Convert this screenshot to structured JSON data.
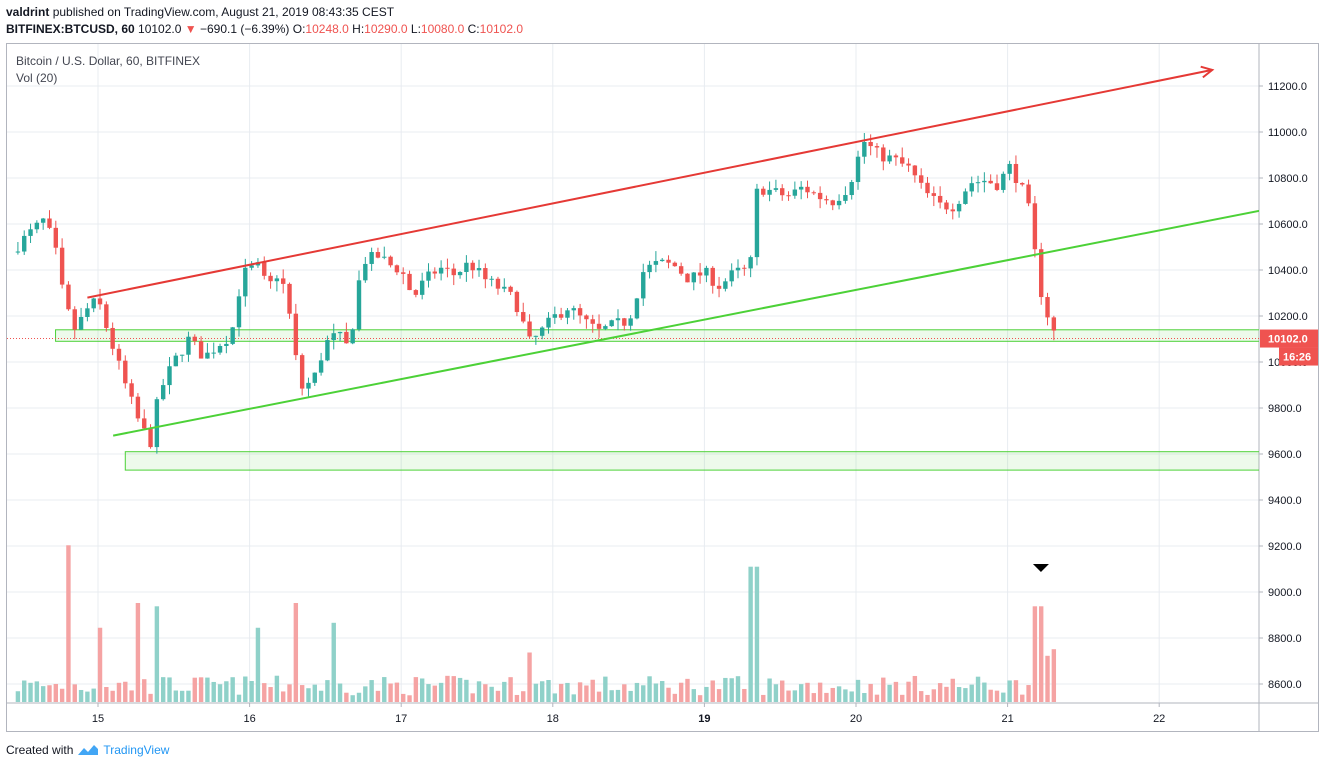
{
  "header": {
    "user": "valdrint",
    "publish_text": "published on TradingView.com, August 21, 2019 08:43:35 CEST",
    "symbol": "BITFINEX:BTCUSD, 60",
    "last": "10102.0",
    "change": "−690.1 (−6.39%)",
    "o_label": "O:",
    "o_value": "10248.0",
    "h_label": "H:",
    "h_value": "10290.0",
    "l_label": "L:",
    "l_value": "10080.0",
    "c_label": "C:",
    "c_value": "10102.0"
  },
  "legend": {
    "title": "Bitcoin / U.S. Dollar, 60, BITFINEX",
    "volume": "Vol (20)"
  },
  "footer": {
    "created_with": "Created with",
    "brand": "TradingView"
  },
  "colors": {
    "up": "#26a69a",
    "down": "#ef5350",
    "vol_up": "#8fd1c9",
    "vol_down": "#f5a3a3",
    "resistance": "#e53935",
    "support": "#4cd137",
    "grid": "#e8ecf1",
    "axis_text": "#131722",
    "price_tag": "#ef5350"
  },
  "chart_data": {
    "type": "candlestick",
    "title": "Bitcoin / U.S. Dollar, 60, BITFINEX",
    "x_ticks": [
      {
        "day": 15,
        "label": "15"
      },
      {
        "day": 16,
        "label": "16"
      },
      {
        "day": 17,
        "label": "17"
      },
      {
        "day": 18,
        "label": "18"
      },
      {
        "day": 19,
        "label": "19"
      },
      {
        "day": 20,
        "label": "20"
      },
      {
        "day": 21,
        "label": "21"
      },
      {
        "day": 22,
        "label": "22"
      }
    ],
    "x_bold_tick": "19",
    "y_ticks": [
      8600,
      8800,
      9000,
      9200,
      9400,
      9600,
      9800,
      10000,
      10200,
      10400,
      10600,
      10800,
      11000,
      11200
    ],
    "y_tick_labels": [
      "8600.0",
      "8800.0",
      "9000.0",
      "9200.0",
      "9400.0",
      "9600.0",
      "9800.0",
      "10000.0",
      "10200.0",
      "10400.0",
      "10600.0",
      "10800.0",
      "11000.0",
      "11200.0"
    ],
    "ylim": [
      8500,
      11370
    ],
    "xlim_days": [
      14.42,
      22.68
    ],
    "current_price": 10102.0,
    "current_price_label": "10102.0",
    "countdown_label": "16:26",
    "price_path": [
      [
        14.43,
        10480
      ],
      [
        14.55,
        10560
      ],
      [
        14.65,
        10620
      ],
      [
        14.72,
        10480
      ],
      [
        14.78,
        10250
      ],
      [
        14.85,
        10140
      ],
      [
        14.93,
        10230
      ],
      [
        15.0,
        10270
      ],
      [
        15.08,
        10100
      ],
      [
        15.18,
        9900
      ],
      [
        15.28,
        9720
      ],
      [
        15.35,
        9650
      ],
      [
        15.4,
        9860
      ],
      [
        15.5,
        10000
      ],
      [
        15.6,
        10100
      ],
      [
        15.7,
        10020
      ],
      [
        15.8,
        10080
      ],
      [
        15.88,
        10120
      ],
      [
        15.95,
        10380
      ],
      [
        16.05,
        10420
      ],
      [
        16.12,
        10320
      ],
      [
        16.2,
        10400
      ],
      [
        16.28,
        10150
      ],
      [
        16.33,
        9880
      ],
      [
        16.42,
        9920
      ],
      [
        16.5,
        10080
      ],
      [
        16.58,
        10120
      ],
      [
        16.66,
        10050
      ],
      [
        16.7,
        10280
      ],
      [
        16.75,
        10440
      ],
      [
        16.85,
        10460
      ],
      [
        16.93,
        10420
      ],
      [
        17.0,
        10400
      ],
      [
        17.08,
        10280
      ],
      [
        17.15,
        10350
      ],
      [
        17.25,
        10410
      ],
      [
        17.35,
        10380
      ],
      [
        17.45,
        10430
      ],
      [
        17.55,
        10360
      ],
      [
        17.65,
        10320
      ],
      [
        17.75,
        10270
      ],
      [
        17.85,
        10080
      ],
      [
        17.95,
        10150
      ],
      [
        18.0,
        10190
      ],
      [
        18.1,
        10240
      ],
      [
        18.2,
        10180
      ],
      [
        18.3,
        10130
      ],
      [
        18.4,
        10160
      ],
      [
        18.5,
        10180
      ],
      [
        18.6,
        10400
      ],
      [
        18.7,
        10430
      ],
      [
        18.8,
        10420
      ],
      [
        18.9,
        10360
      ],
      [
        19.0,
        10390
      ],
      [
        19.1,
        10330
      ],
      [
        19.2,
        10390
      ],
      [
        19.3,
        10400
      ],
      [
        19.35,
        10760
      ],
      [
        19.45,
        10740
      ],
      [
        19.55,
        10720
      ],
      [
        19.65,
        10760
      ],
      [
        19.75,
        10720
      ],
      [
        19.85,
        10700
      ],
      [
        19.95,
        10760
      ],
      [
        20.05,
        10960
      ],
      [
        20.15,
        10900
      ],
      [
        20.25,
        10880
      ],
      [
        20.35,
        10840
      ],
      [
        20.45,
        10740
      ],
      [
        20.55,
        10680
      ],
      [
        20.65,
        10680
      ],
      [
        20.75,
        10780
      ],
      [
        20.85,
        10790
      ],
      [
        20.95,
        10770
      ],
      [
        21.0,
        10860
      ],
      [
        21.08,
        10780
      ],
      [
        21.15,
        10640
      ],
      [
        21.2,
        10360
      ],
      [
        21.25,
        10230
      ],
      [
        21.32,
        10102
      ]
    ],
    "volume_spikes": [
      {
        "day": 14.8,
        "dir": "down",
        "rel": 0.95
      },
      {
        "day": 15.0,
        "dir": "down",
        "rel": 0.45
      },
      {
        "day": 15.25,
        "dir": "down",
        "rel": 0.6
      },
      {
        "day": 15.38,
        "dir": "down",
        "rel": 0.58
      },
      {
        "day": 16.05,
        "dir": "up",
        "rel": 0.45
      },
      {
        "day": 16.3,
        "dir": "down",
        "rel": 0.6
      },
      {
        "day": 16.55,
        "dir": "up",
        "rel": 0.48
      },
      {
        "day": 17.85,
        "dir": "down",
        "rel": 0.3
      },
      {
        "day": 19.33,
        "dir": "up",
        "rel": 0.82
      },
      {
        "day": 21.2,
        "dir": "down",
        "rel": 0.58
      },
      {
        "day": 21.27,
        "dir": "down",
        "rel": 0.28
      },
      {
        "day": 21.32,
        "dir": "down",
        "rel": 0.32
      }
    ],
    "annotations": {
      "resistance_line": {
        "from": [
          14.93,
          10280
        ],
        "to": [
          22.35,
          11270
        ],
        "arrow": true
      },
      "support_line": {
        "from": [
          15.1,
          9680
        ],
        "to": [
          22.68,
          10660
        ]
      },
      "zone_upper": {
        "x_from": 14.72,
        "x_to": 22.68,
        "y_low": 10090,
        "y_high": 10140
      },
      "zone_lower": {
        "x_from": 15.18,
        "x_to": 22.68,
        "y_low": 9530,
        "y_high": 9610
      },
      "marker": {
        "day": 21.22,
        "shape": "down-triangle"
      }
    }
  }
}
